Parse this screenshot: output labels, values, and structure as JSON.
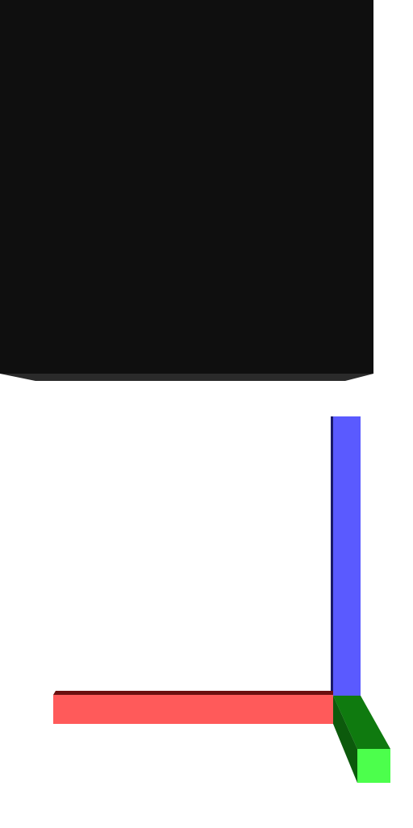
{
  "scene": {
    "background": "#ffffff",
    "dark_box": {
      "face_color": "#0f0f0f",
      "edge_color": "#2a2a2a"
    },
    "axes": {
      "x": {
        "axis": "x",
        "color": "#ff5a5a",
        "shade": "#6a0f0f"
      },
      "y": {
        "axis": "y",
        "color": "#4cff4c",
        "shade": "#0f7a0f",
        "dark": "#0c5a0c"
      },
      "z": {
        "axis": "z",
        "color": "#5a5aff",
        "shade": "#1a1a6a"
      }
    }
  }
}
